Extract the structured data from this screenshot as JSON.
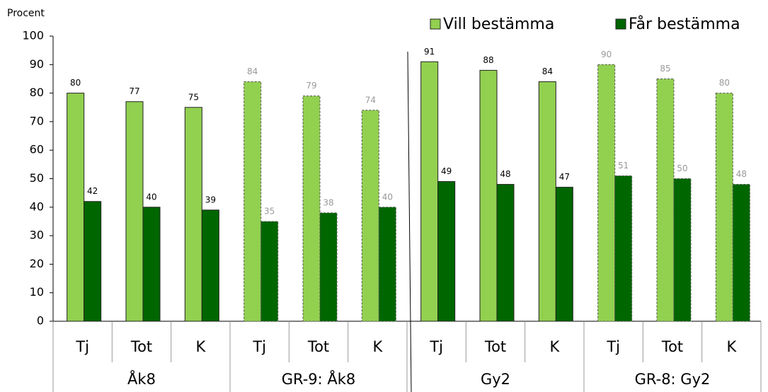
{
  "chart_data": {
    "type": "bar",
    "y_label": "Procent",
    "groups": [
      {
        "name": "Åk8",
        "categories": [
          "Tj",
          "Tot",
          "K"
        ]
      },
      {
        "name": "GR-9: Åk8",
        "categories": [
          "Tj",
          "Tot",
          "K"
        ]
      },
      {
        "name": "Gy2",
        "categories": [
          "Tj",
          "Tot",
          "K"
        ]
      },
      {
        "name": "GR-8: Gy2",
        "categories": [
          "Tj",
          "Tot",
          "K"
        ]
      }
    ],
    "series": [
      {
        "name": "Vill bestämma",
        "color": "#92d050",
        "values": [
          80,
          77,
          75,
          84,
          79,
          74,
          91,
          88,
          84,
          90,
          85,
          80
        ]
      },
      {
        "name": "Får bestämma",
        "color": "#006600",
        "values": [
          42,
          40,
          39,
          35,
          38,
          40,
          49,
          48,
          47,
          51,
          50,
          48
        ]
      }
    ],
    "ylim": [
      0,
      100
    ],
    "yticks": [
      0,
      10,
      20,
      30,
      40,
      50,
      60,
      70,
      80,
      90,
      100
    ],
    "legend": "top-right",
    "grid": false
  }
}
